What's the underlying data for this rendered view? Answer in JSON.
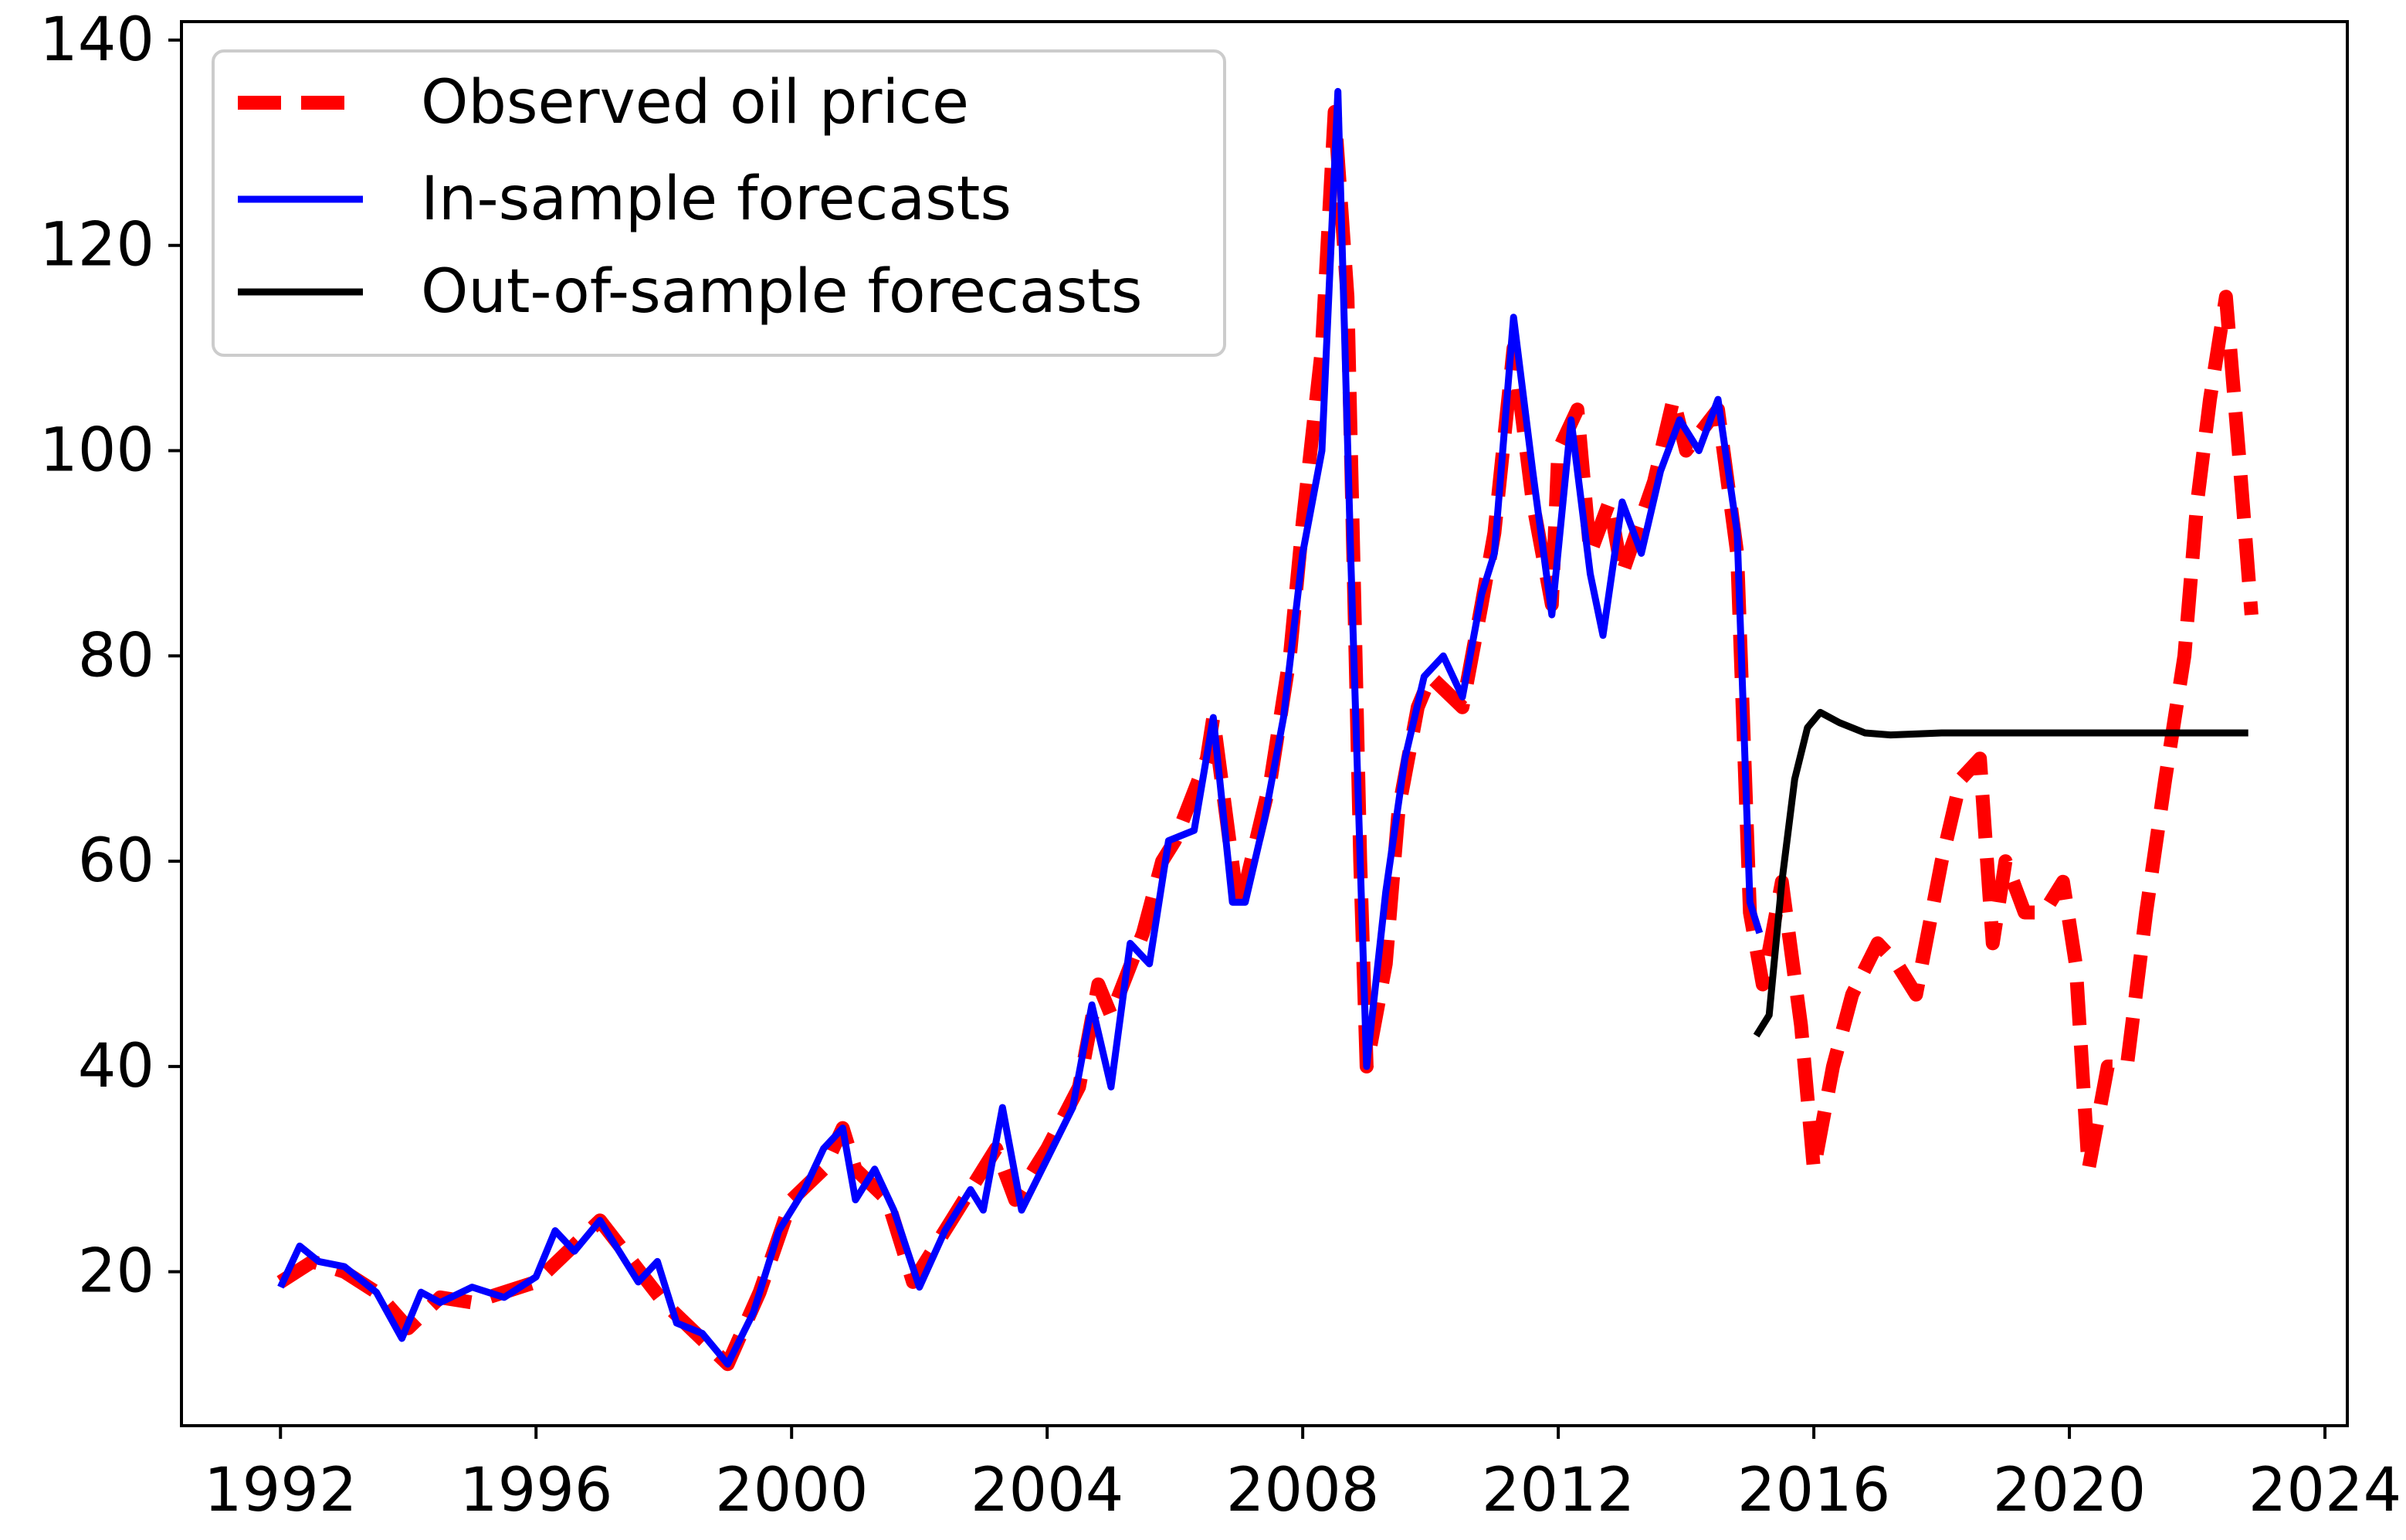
{
  "chart_data": {
    "type": "line",
    "title": "",
    "xlabel": "",
    "ylabel": "",
    "xlim": [
      1990.45,
      2024.35
    ],
    "ylim": [
      5,
      141.8
    ],
    "x_ticks": [
      1992,
      1996,
      2000,
      2004,
      2008,
      2012,
      2016,
      2020,
      2024
    ],
    "y_ticks": [
      20,
      40,
      60,
      80,
      100,
      120,
      140
    ],
    "grid": false,
    "legend": {
      "placement": "top-left",
      "entries": [
        "Observed oil price",
        "In-sample forecasts",
        "Out-of-sample forecasts"
      ]
    },
    "series": [
      {
        "name": "Observed oil price",
        "color": "#ff0000",
        "style": "dashed",
        "points": [
          [
            1992.0,
            19
          ],
          [
            1992.5,
            21
          ],
          [
            1993.0,
            20
          ],
          [
            1993.5,
            18
          ],
          [
            1994.0,
            14.5
          ],
          [
            1994.5,
            17.5
          ],
          [
            1995.0,
            17
          ],
          [
            1995.5,
            18
          ],
          [
            1996.0,
            19
          ],
          [
            1996.5,
            22
          ],
          [
            1997.0,
            25
          ],
          [
            1997.5,
            21
          ],
          [
            1998.0,
            17
          ],
          [
            1998.5,
            14
          ],
          [
            1999.0,
            11
          ],
          [
            1999.5,
            18
          ],
          [
            2000.0,
            27
          ],
          [
            2000.5,
            30
          ],
          [
            2000.8,
            34
          ],
          [
            2001.0,
            30
          ],
          [
            2001.5,
            27
          ],
          [
            2001.9,
            19
          ],
          [
            2002.5,
            25
          ],
          [
            2003.0,
            30
          ],
          [
            2003.2,
            32
          ],
          [
            2003.5,
            27
          ],
          [
            2004.0,
            32
          ],
          [
            2004.5,
            38
          ],
          [
            2004.8,
            48
          ],
          [
            2005.0,
            45
          ],
          [
            2005.5,
            53
          ],
          [
            2005.8,
            60
          ],
          [
            2006.0,
            62
          ],
          [
            2006.5,
            70
          ],
          [
            2006.6,
            74
          ],
          [
            2007.0,
            55
          ],
          [
            2007.5,
            68
          ],
          [
            2007.8,
            80
          ],
          [
            2008.0,
            93
          ],
          [
            2008.3,
            110
          ],
          [
            2008.5,
            133
          ],
          [
            2008.7,
            115
          ],
          [
            2008.9,
            60
          ],
          [
            2009.0,
            40
          ],
          [
            2009.3,
            50
          ],
          [
            2009.5,
            65
          ],
          [
            2009.8,
            75
          ],
          [
            2010.0,
            78
          ],
          [
            2010.5,
            75
          ],
          [
            2010.8,
            85
          ],
          [
            2011.0,
            92
          ],
          [
            2011.3,
            110
          ],
          [
            2011.6,
            95
          ],
          [
            2011.9,
            85
          ],
          [
            2012.0,
            100
          ],
          [
            2012.3,
            104
          ],
          [
            2012.5,
            90
          ],
          [
            2012.8,
            95
          ],
          [
            2013.0,
            88
          ],
          [
            2013.5,
            97
          ],
          [
            2013.8,
            105
          ],
          [
            2014.0,
            100
          ],
          [
            2014.5,
            104
          ],
          [
            2014.8,
            90
          ],
          [
            2015.0,
            55
          ],
          [
            2015.2,
            48
          ],
          [
            2015.5,
            58
          ],
          [
            2015.8,
            44
          ],
          [
            2016.0,
            30
          ],
          [
            2016.3,
            40
          ],
          [
            2016.6,
            47
          ],
          [
            2017.0,
            52
          ],
          [
            2017.3,
            50
          ],
          [
            2017.6,
            47
          ],
          [
            2018.0,
            60
          ],
          [
            2018.3,
            68
          ],
          [
            2018.6,
            70
          ],
          [
            2018.8,
            52
          ],
          [
            2019.0,
            60
          ],
          [
            2019.3,
            55
          ],
          [
            2019.6,
            55
          ],
          [
            2019.9,
            58
          ],
          [
            2020.1,
            50
          ],
          [
            2020.3,
            30
          ],
          [
            2020.6,
            40
          ],
          [
            2020.9,
            40
          ],
          [
            2021.2,
            55
          ],
          [
            2021.5,
            68
          ],
          [
            2021.8,
            80
          ],
          [
            2022.0,
            95
          ],
          [
            2022.2,
            105
          ],
          [
            2022.45,
            115
          ],
          [
            2022.65,
            100
          ],
          [
            2022.85,
            84
          ]
        ]
      },
      {
        "name": "In-sample forecasts",
        "color": "#0000ff",
        "style": "solid",
        "points": [
          [
            1992.0,
            18.5
          ],
          [
            1992.3,
            22.5
          ],
          [
            1992.6,
            21
          ],
          [
            1993.0,
            20.5
          ],
          [
            1993.5,
            18
          ],
          [
            1993.9,
            13.5
          ],
          [
            1994.2,
            18
          ],
          [
            1994.5,
            17
          ],
          [
            1995.0,
            18.5
          ],
          [
            1995.5,
            17.5
          ],
          [
            1996.0,
            19.5
          ],
          [
            1996.3,
            24
          ],
          [
            1996.6,
            22
          ],
          [
            1997.0,
            25
          ],
          [
            1997.3,
            22
          ],
          [
            1997.6,
            19
          ],
          [
            1997.9,
            21
          ],
          [
            1998.2,
            15
          ],
          [
            1998.6,
            14
          ],
          [
            1999.0,
            11
          ],
          [
            1999.4,
            16
          ],
          [
            1999.8,
            24
          ],
          [
            2000.2,
            28
          ],
          [
            2000.5,
            32
          ],
          [
            2000.8,
            34
          ],
          [
            2001.0,
            27
          ],
          [
            2001.3,
            30
          ],
          [
            2001.6,
            26
          ],
          [
            2002.0,
            18.5
          ],
          [
            2002.4,
            24
          ],
          [
            2002.8,
            28
          ],
          [
            2003.0,
            26
          ],
          [
            2003.3,
            36
          ],
          [
            2003.6,
            26
          ],
          [
            2004.0,
            31
          ],
          [
            2004.4,
            36
          ],
          [
            2004.7,
            46
          ],
          [
            2005.0,
            38
          ],
          [
            2005.3,
            52
          ],
          [
            2005.6,
            50
          ],
          [
            2005.9,
            62
          ],
          [
            2006.3,
            63
          ],
          [
            2006.6,
            74
          ],
          [
            2006.9,
            56
          ],
          [
            2007.1,
            56
          ],
          [
            2007.4,
            64
          ],
          [
            2007.7,
            74
          ],
          [
            2008.0,
            90
          ],
          [
            2008.3,
            100
          ],
          [
            2008.55,
            135
          ],
          [
            2008.75,
            90
          ],
          [
            2009.0,
            40
          ],
          [
            2009.3,
            57
          ],
          [
            2009.6,
            70
          ],
          [
            2009.9,
            78
          ],
          [
            2010.2,
            80
          ],
          [
            2010.5,
            76
          ],
          [
            2010.8,
            86
          ],
          [
            2011.0,
            90
          ],
          [
            2011.3,
            113
          ],
          [
            2011.6,
            98
          ],
          [
            2011.9,
            84
          ],
          [
            2012.2,
            103
          ],
          [
            2012.5,
            88
          ],
          [
            2012.7,
            82
          ],
          [
            2013.0,
            95
          ],
          [
            2013.3,
            90
          ],
          [
            2013.6,
            98
          ],
          [
            2013.9,
            103
          ],
          [
            2014.2,
            100
          ],
          [
            2014.5,
            105
          ],
          [
            2014.8,
            92
          ],
          [
            2015.0,
            56
          ],
          [
            2015.15,
            53
          ]
        ]
      },
      {
        "name": "Out-of-sample forecasts",
        "color": "#000000",
        "style": "solid",
        "points": [
          [
            2015.1,
            43
          ],
          [
            2015.3,
            45
          ],
          [
            2015.5,
            58
          ],
          [
            2015.7,
            68
          ],
          [
            2015.9,
            73
          ],
          [
            2016.1,
            74.5
          ],
          [
            2016.4,
            73.5
          ],
          [
            2016.8,
            72.5
          ],
          [
            2017.2,
            72.3
          ],
          [
            2018.0,
            72.5
          ],
          [
            2020.0,
            72.5
          ],
          [
            2022.8,
            72.5
          ]
        ]
      }
    ]
  }
}
